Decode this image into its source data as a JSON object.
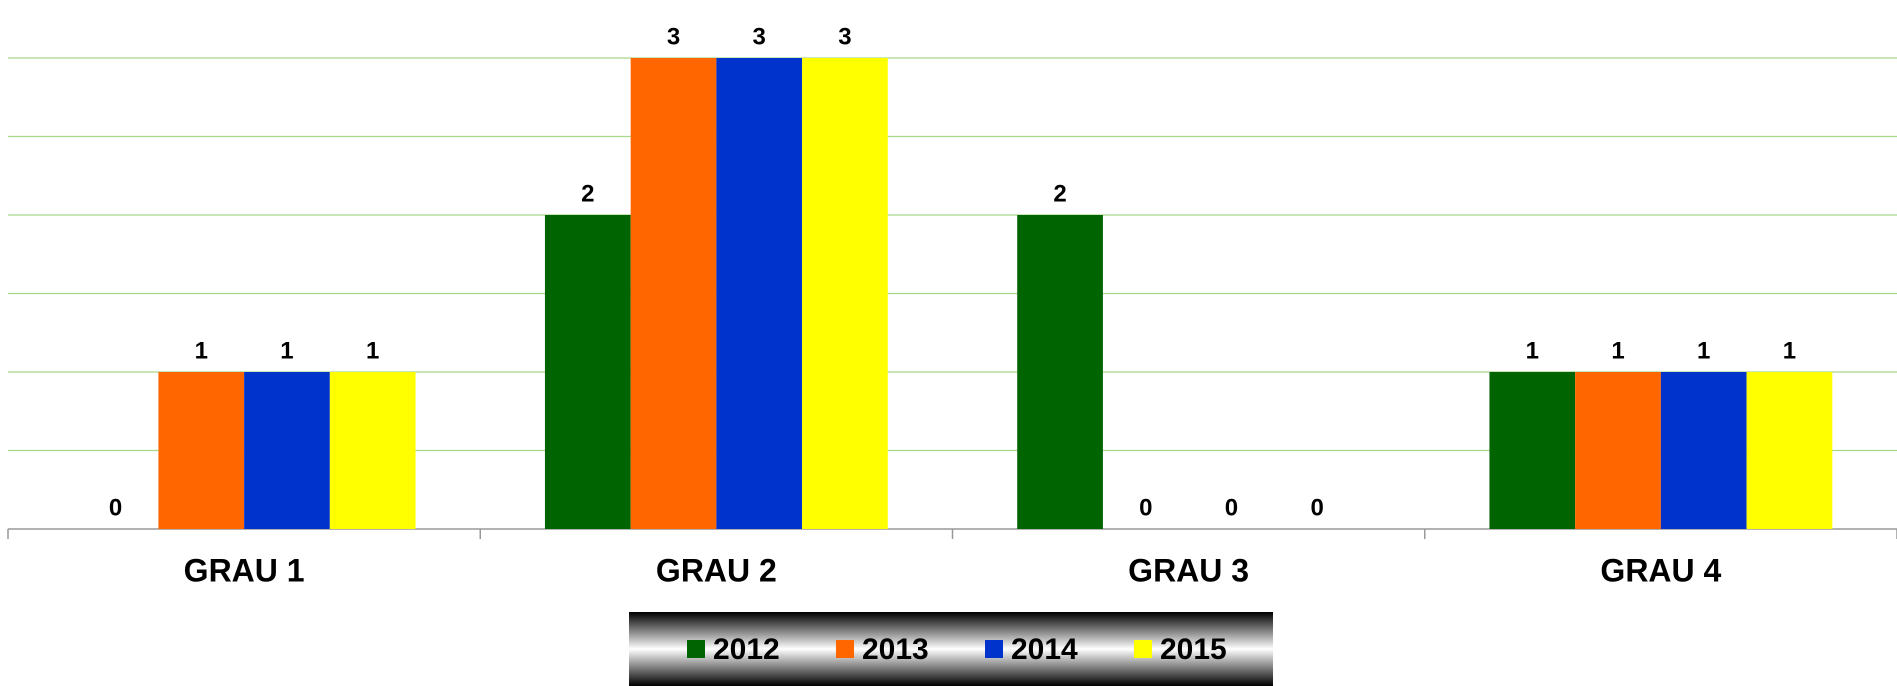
{
  "chart_data": {
    "type": "bar",
    "categories": [
      "GRAU 1",
      "GRAU 2",
      "GRAU 3",
      "GRAU 4"
    ],
    "series": [
      {
        "name": "2012",
        "color": "#006400",
        "values": [
          0,
          2,
          2,
          1
        ]
      },
      {
        "name": "2013",
        "color": "#ff6600",
        "values": [
          1,
          3,
          0,
          1
        ]
      },
      {
        "name": "2014",
        "color": "#0033cc",
        "values": [
          1,
          3,
          0,
          1
        ]
      },
      {
        "name": "2015",
        "color": "#ffff00",
        "values": [
          1,
          3,
          0,
          1
        ]
      }
    ],
    "ylim": [
      0,
      3
    ],
    "yticks": [
      0,
      0.5,
      1,
      1.5,
      2,
      2.5,
      3
    ],
    "grid": true,
    "legend": "bottom"
  }
}
